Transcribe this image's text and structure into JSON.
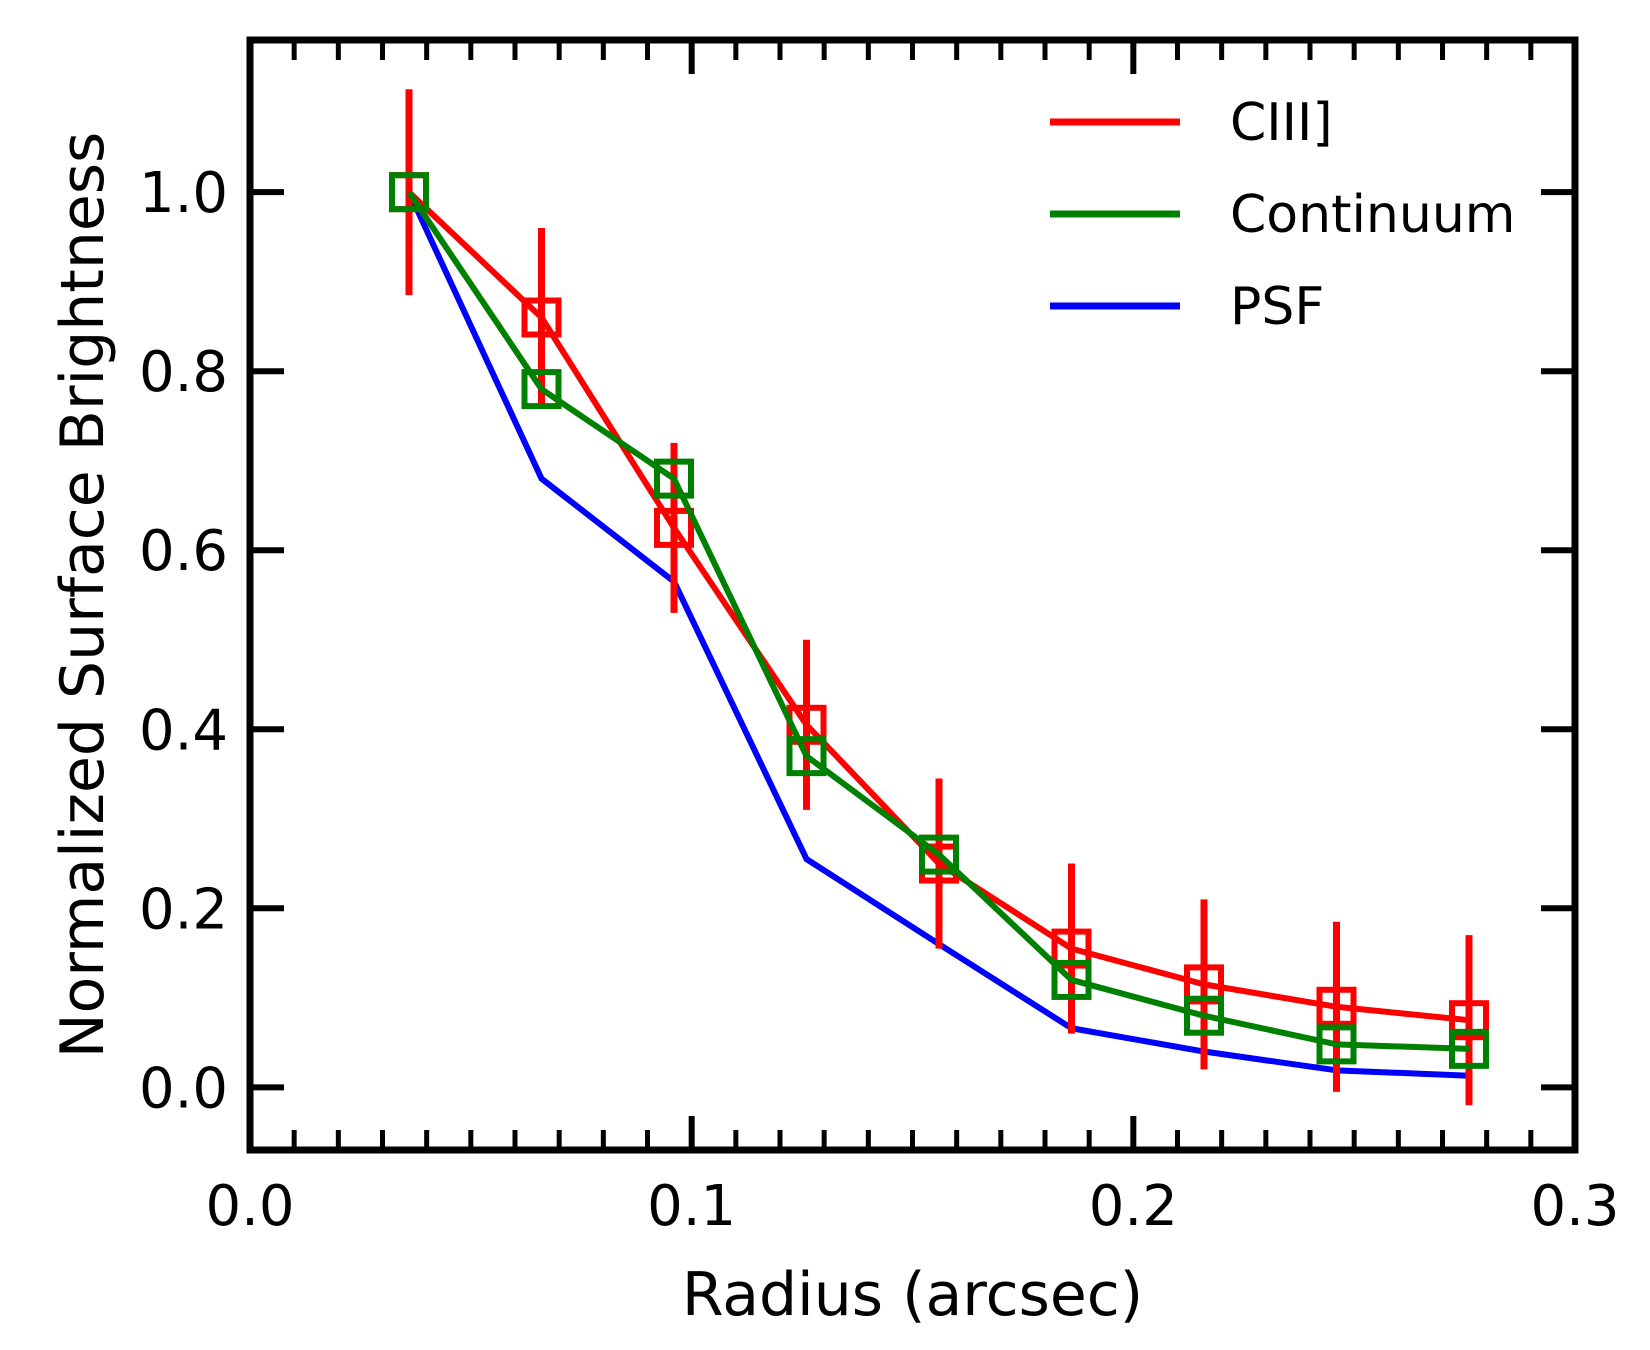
{
  "chart_data": {
    "type": "line",
    "title": "",
    "xlabel": "Radius (arcsec)",
    "ylabel": "Normalized Surface Brightness",
    "xlim": [
      0.0,
      0.3
    ],
    "ylim": [
      -0.07,
      1.17
    ],
    "grid": false,
    "legend_position": "top-right",
    "x_ticks": [
      0.0,
      0.1,
      0.2,
      0.3
    ],
    "x_tick_labels": [
      "0.0",
      "0.1",
      "0.2",
      "0.3"
    ],
    "y_ticks": [
      0.0,
      0.2,
      0.4,
      0.6,
      0.8,
      1.0
    ],
    "y_tick_labels": [
      "0.0",
      "0.2",
      "0.4",
      "0.6",
      "0.8",
      "1.0"
    ],
    "x_minor_step": 0.01,
    "series": [
      {
        "name": "CIII]",
        "color": "#ff0000",
        "marker": "open-square",
        "x": [
          0.036,
          0.066,
          0.096,
          0.126,
          0.156,
          0.186,
          0.216,
          0.246,
          0.276
        ],
        "y": [
          1.0,
          0.86,
          0.625,
          0.405,
          0.25,
          0.155,
          0.115,
          0.09,
          0.075
        ],
        "yerr": [
          0.115,
          0.1,
          0.095,
          0.095,
          0.095,
          0.095,
          0.095,
          0.095,
          0.095
        ]
      },
      {
        "name": "Continuum",
        "color": "#008000",
        "marker": "open-square",
        "x": [
          0.036,
          0.066,
          0.096,
          0.126,
          0.156,
          0.186,
          0.216,
          0.246,
          0.276
        ],
        "y": [
          1.0,
          0.78,
          0.68,
          0.37,
          0.26,
          0.12,
          0.08,
          0.048,
          0.043
        ]
      },
      {
        "name": "PSF",
        "color": "#0000ff",
        "marker": "none",
        "x": [
          0.036,
          0.066,
          0.096,
          0.126,
          0.156,
          0.186,
          0.216,
          0.246,
          0.276
        ],
        "y": [
          1.0,
          0.68,
          0.565,
          0.255,
          0.16,
          0.066,
          0.04,
          0.019,
          0.013
        ]
      }
    ]
  }
}
